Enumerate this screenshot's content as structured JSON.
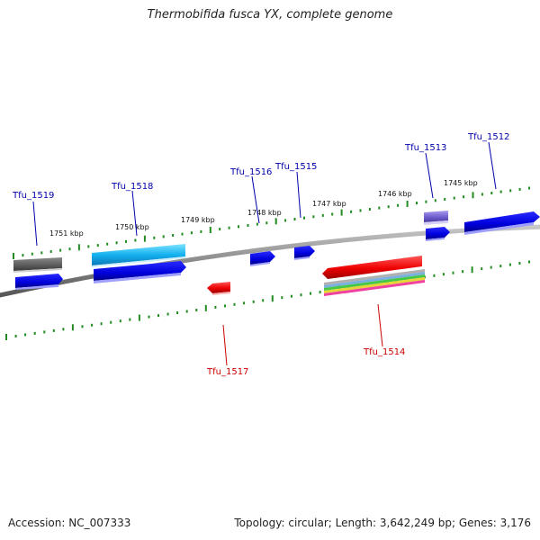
{
  "title": "Thermobifida fusca YX, complete genome",
  "accession": "Accession: NC_007333",
  "summary": "Topology: circular; Length: 3,642,249 bp; Genes: 3,176",
  "colors": {
    "forward_label": "#0000aa",
    "reverse_label": "#cc0000",
    "backbone": "#808080",
    "tick": "#228b22"
  },
  "scale_labels": [
    {
      "text": "1751 kbp",
      "kbp": 1751
    },
    {
      "text": "1750 kbp",
      "kbp": 1750
    },
    {
      "text": "1749 kbp",
      "kbp": 1749
    },
    {
      "text": "1748 kbp",
      "kbp": 1748
    },
    {
      "text": "1747 kbp",
      "kbp": 1747
    },
    {
      "text": "1746 kbp",
      "kbp": 1746
    },
    {
      "text": "1745 kbp",
      "kbp": 1745
    }
  ],
  "forward_genes": [
    {
      "label": "Tfu_1519"
    },
    {
      "label": "Tfu_1518"
    },
    {
      "label": "Tfu_1516"
    },
    {
      "label": "Tfu_1515"
    },
    {
      "label": "Tfu_1513"
    },
    {
      "label": "Tfu_1512"
    }
  ],
  "reverse_genes": [
    {
      "label": "Tfu_1517"
    },
    {
      "label": "Tfu_1514"
    }
  ]
}
